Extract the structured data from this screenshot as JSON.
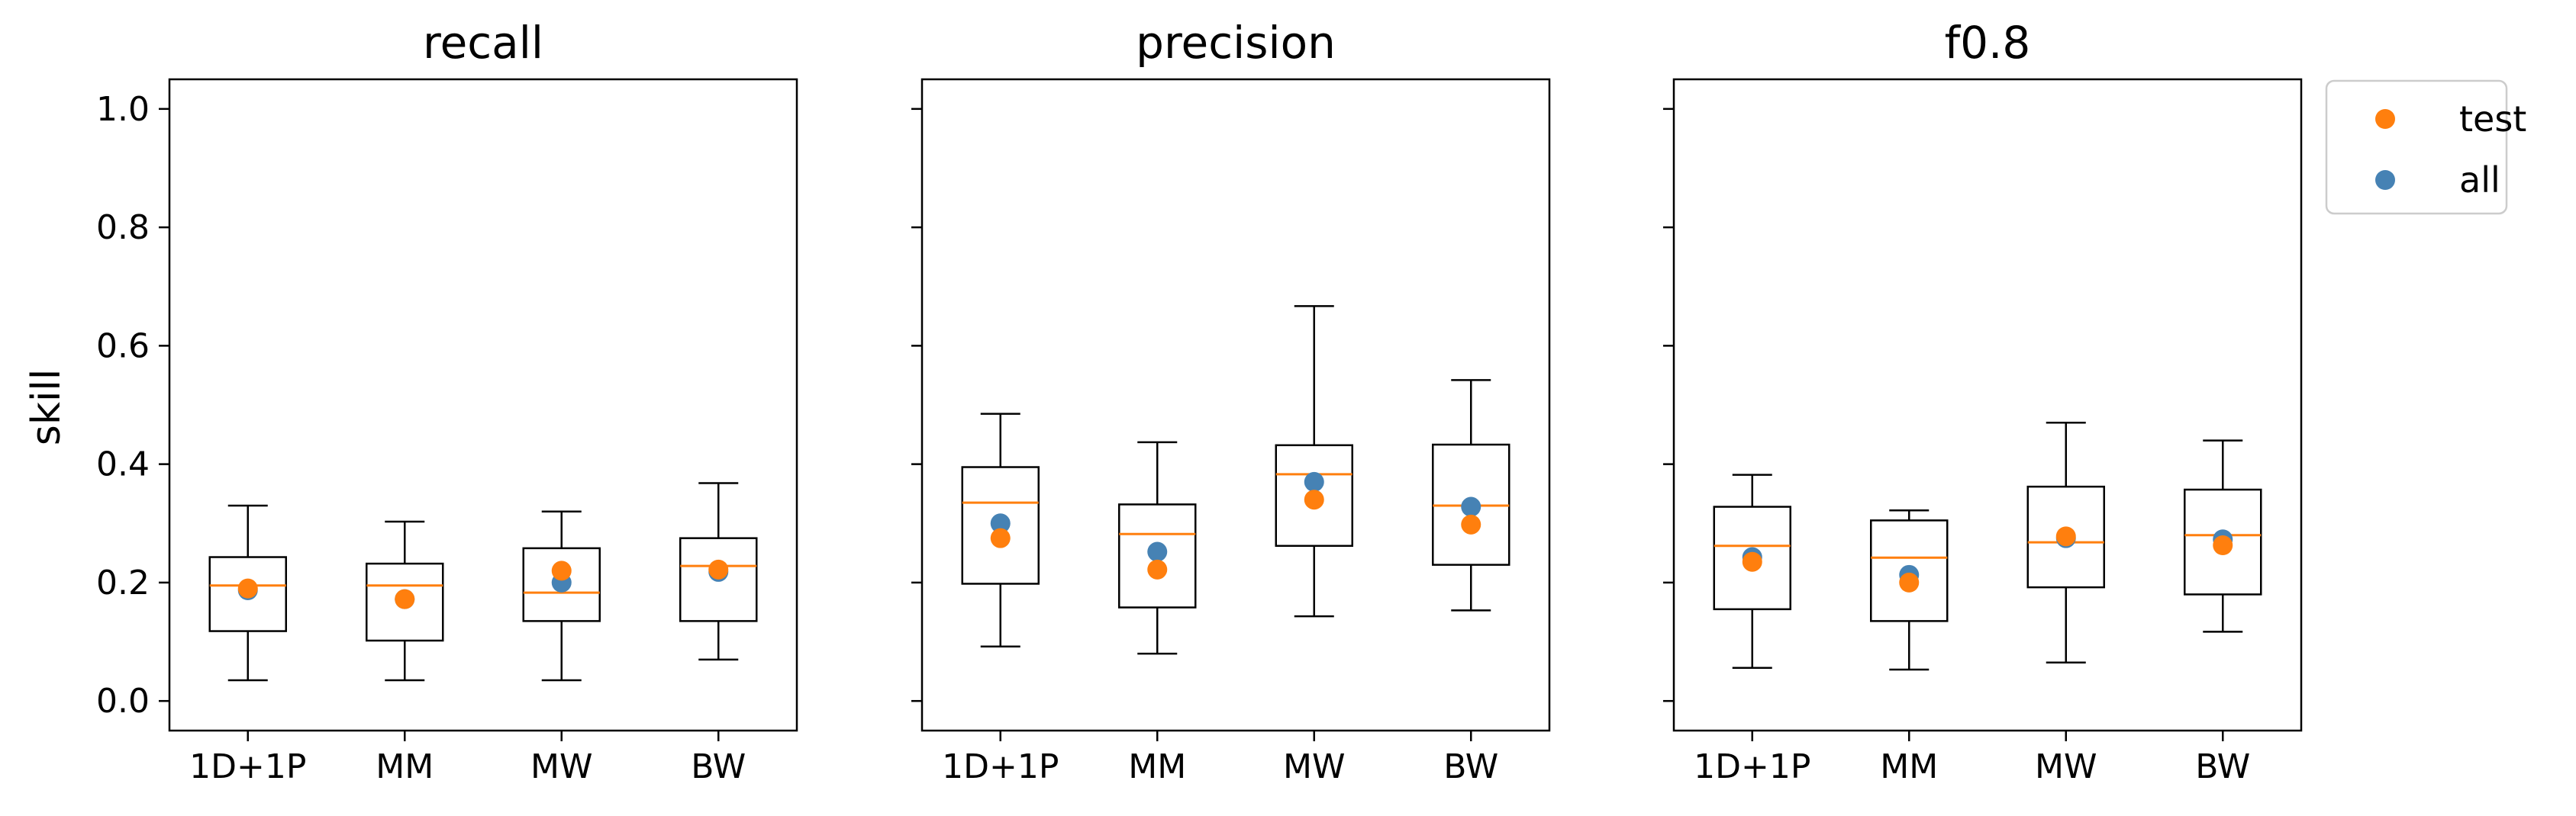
{
  "chart_data": {
    "type": "box",
    "ylabel": "skill",
    "ylim": [
      -0.05,
      1.05
    ],
    "yticks": [
      0.0,
      0.2,
      0.4,
      0.6,
      0.8,
      1.0
    ],
    "ytick_labels": [
      "0.0",
      "0.2",
      "0.4",
      "0.6",
      "0.8",
      "1.0"
    ],
    "categories": [
      "1D+1P",
      "MM",
      "MW",
      "BW"
    ],
    "legend": {
      "position": "outside-top-right",
      "entries": [
        {
          "label": "test",
          "color": "#ff7f0e"
        },
        {
          "label": "all",
          "color": "#4682b4"
        }
      ]
    },
    "colors": {
      "median": "#ff7f0e",
      "test": "#ff7f0e",
      "all": "#4682b4",
      "box": "#000000"
    },
    "panels": [
      {
        "title": "recall",
        "boxes": [
          {
            "category": "1D+1P",
            "whisker_low": 0.035,
            "q1": 0.118,
            "median": 0.195,
            "q3": 0.243,
            "whisker_high": 0.33,
            "test": 0.19,
            "all": 0.187
          },
          {
            "category": "MM",
            "whisker_low": 0.035,
            "q1": 0.102,
            "median": 0.195,
            "q3": 0.232,
            "whisker_high": 0.303,
            "test": 0.172,
            "all": 0.172
          },
          {
            "category": "MW",
            "whisker_low": 0.035,
            "q1": 0.135,
            "median": 0.183,
            "q3": 0.258,
            "whisker_high": 0.32,
            "test": 0.22,
            "all": 0.2
          },
          {
            "category": "BW",
            "whisker_low": 0.07,
            "q1": 0.135,
            "median": 0.228,
            "q3": 0.275,
            "whisker_high": 0.368,
            "test": 0.222,
            "all": 0.218
          }
        ]
      },
      {
        "title": "precision",
        "boxes": [
          {
            "category": "1D+1P",
            "whisker_low": 0.092,
            "q1": 0.198,
            "median": 0.335,
            "q3": 0.395,
            "whisker_high": 0.485,
            "test": 0.275,
            "all": 0.3
          },
          {
            "category": "MM",
            "whisker_low": 0.08,
            "q1": 0.158,
            "median": 0.282,
            "q3": 0.332,
            "whisker_high": 0.437,
            "test": 0.222,
            "all": 0.252
          },
          {
            "category": "MW",
            "whisker_low": 0.143,
            "q1": 0.262,
            "median": 0.383,
            "q3": 0.432,
            "whisker_high": 0.667,
            "test": 0.34,
            "all": 0.37
          },
          {
            "category": "BW",
            "whisker_low": 0.153,
            "q1": 0.23,
            "median": 0.33,
            "q3": 0.433,
            "whisker_high": 0.542,
            "test": 0.298,
            "all": 0.328
          }
        ]
      },
      {
        "title": "f0.8",
        "boxes": [
          {
            "category": "1D+1P",
            "whisker_low": 0.056,
            "q1": 0.155,
            "median": 0.262,
            "q3": 0.328,
            "whisker_high": 0.382,
            "test": 0.235,
            "all": 0.243
          },
          {
            "category": "MM",
            "whisker_low": 0.053,
            "q1": 0.135,
            "median": 0.242,
            "q3": 0.305,
            "whisker_high": 0.322,
            "test": 0.2,
            "all": 0.213
          },
          {
            "category": "MW",
            "whisker_low": 0.065,
            "q1": 0.192,
            "median": 0.268,
            "q3": 0.362,
            "whisker_high": 0.47,
            "test": 0.278,
            "all": 0.275
          },
          {
            "category": "BW",
            "whisker_low": 0.117,
            "q1": 0.18,
            "median": 0.28,
            "q3": 0.357,
            "whisker_high": 0.44,
            "test": 0.263,
            "all": 0.273
          }
        ]
      }
    ]
  }
}
